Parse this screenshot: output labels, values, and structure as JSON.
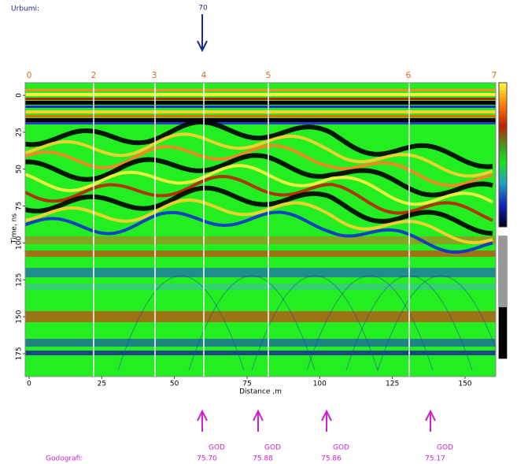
{
  "header": {
    "label": "Urbumi:",
    "borehole": "70"
  },
  "markers": [
    "0",
    "2",
    "3",
    "4",
    "5",
    "6",
    "7"
  ],
  "y_axis": {
    "label": "Time, ns",
    "ticks": [
      0,
      25,
      50,
      75,
      100,
      125,
      150,
      175
    ]
  },
  "x_axis": {
    "label": "Distance ,m",
    "ticks": [
      0,
      25,
      50,
      75,
      100,
      125,
      150
    ]
  },
  "footer": {
    "label": "Godografi:",
    "items": [
      {
        "tag": "GOD",
        "value": "75.70"
      },
      {
        "tag": "GOD",
        "value": "75.88"
      },
      {
        "tag": "GOD",
        "value": "75.86"
      },
      {
        "tag": "GOD",
        "value": "75.17"
      }
    ]
  }
}
